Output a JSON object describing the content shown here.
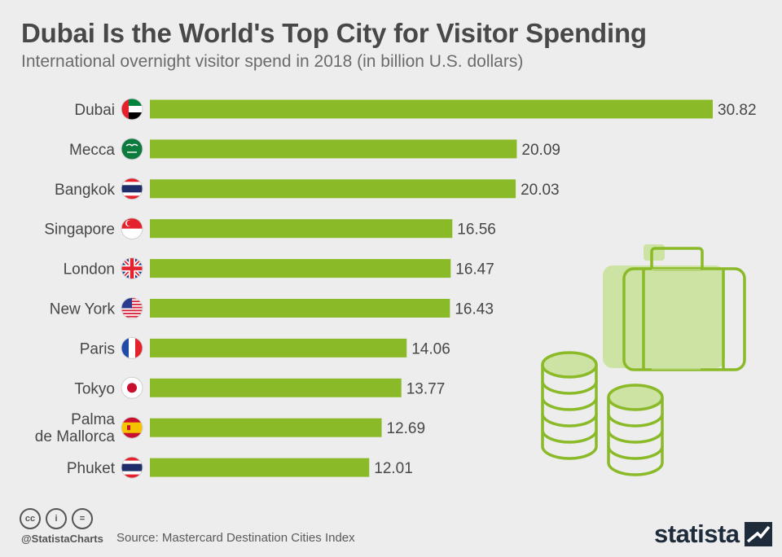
{
  "header": {
    "title": "Dubai Is the World's Top City for Visitor Spending",
    "subtitle": "International overnight visitor spend in 2018 (in billion U.S. dollars)"
  },
  "colors": {
    "bar": "#8aba27",
    "text": "#474747",
    "icon_fill": "#cde3a4",
    "icon_stroke": "#8aba27"
  },
  "chart_data": {
    "type": "bar",
    "orientation": "horizontal",
    "categories": [
      "Dubai",
      "Mecca",
      "Bangkok",
      "Singapore",
      "London",
      "New York",
      "Paris",
      "Tokyo",
      "Palma de Mallorca",
      "Phuket"
    ],
    "values": [
      30.82,
      20.09,
      20.03,
      16.56,
      16.47,
      16.43,
      14.06,
      13.77,
      12.69,
      12.01
    ],
    "flags": [
      "uae-flag-icon",
      "saudi-arabia-flag-icon",
      "thailand-flag-icon",
      "singapore-flag-icon",
      "uk-flag-icon",
      "usa-flag-icon",
      "france-flag-icon",
      "japan-flag-icon",
      "spain-flag-icon",
      "thailand-flag-icon"
    ],
    "xlim": [
      0,
      30.82
    ],
    "grid": false,
    "legend": "none"
  },
  "footer": {
    "handle": "@StatistaCharts",
    "source": "Source: Mastercard Destination Cities Index",
    "cc_icons": [
      "cc",
      "i",
      "="
    ],
    "brand": "statista"
  }
}
